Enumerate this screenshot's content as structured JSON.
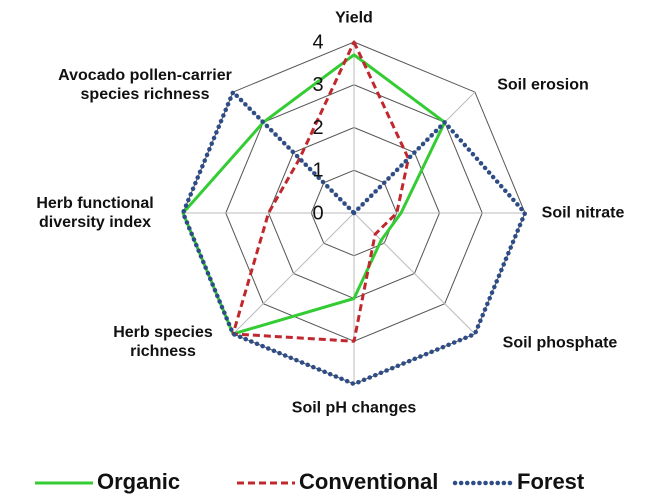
{
  "chart_data": {
    "type": "radar",
    "categories": [
      "Yield",
      "Soil erosion",
      "Soil nitrate",
      "Soil phosphate",
      "Soil pH changes",
      "Herb species richness",
      "Herb functional diversity index",
      "Avocado pollen-carrier species richness"
    ],
    "series": [
      {
        "name": "Organic",
        "color": "#33cc33",
        "style": "solid",
        "values": [
          3.7,
          3,
          1.1,
          0.9,
          2,
          4,
          4,
          3
        ]
      },
      {
        "name": "Conventional",
        "color": "#c0282d",
        "style": "dashed",
        "values": [
          4,
          1.8,
          1,
          0.7,
          3,
          4,
          2,
          1.8
        ]
      },
      {
        "name": "Forest",
        "color": "#2e4d87",
        "style": "dotted",
        "values": [
          0,
          3,
          4,
          4,
          4,
          4,
          4,
          4
        ]
      }
    ],
    "ylim": [
      0,
      4
    ],
    "yticks": [
      0,
      1,
      2,
      3,
      4
    ],
    "grid": true,
    "legend": "bottom"
  }
}
